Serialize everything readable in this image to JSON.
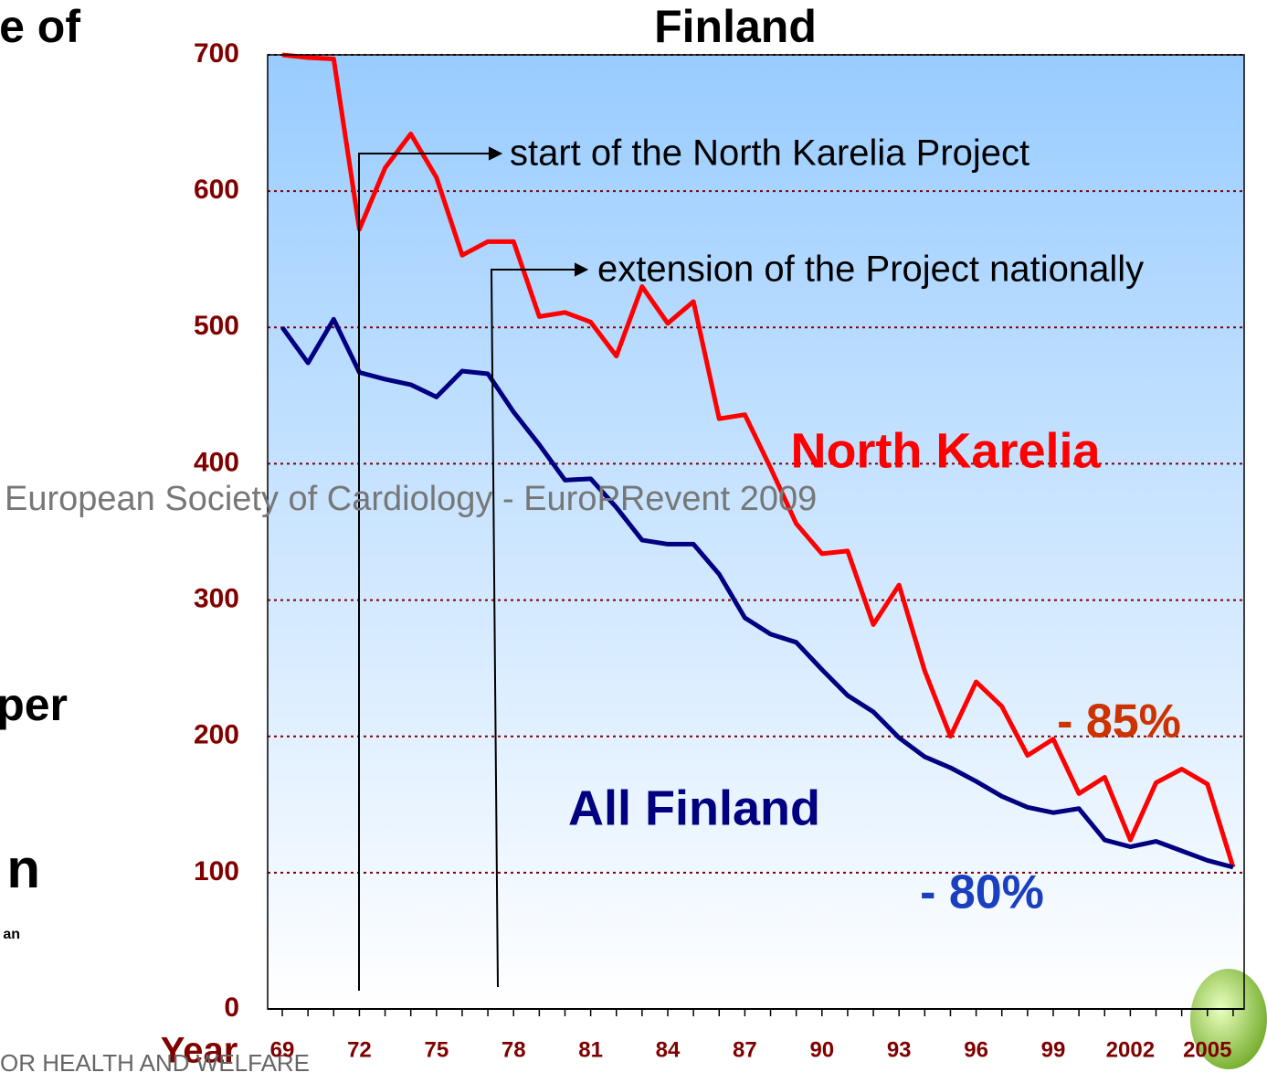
{
  "chart_data": {
    "type": "line",
    "title": "Finland",
    "x_label": "Year",
    "x": [
      1969,
      1970,
      1971,
      1972,
      1973,
      1974,
      1975,
      1976,
      1977,
      1978,
      1979,
      1980,
      1981,
      1982,
      1983,
      1984,
      1985,
      1986,
      1987,
      1988,
      1989,
      1990,
      1991,
      1992,
      1993,
      1994,
      1995,
      1996,
      1997,
      1998,
      1999,
      2000,
      2001,
      2002,
      2003,
      2004,
      2005,
      2006
    ],
    "series": [
      {
        "name": "North Karelia",
        "color": "#ff0000",
        "change_label": "- 85%",
        "change_color": "#cc3300",
        "values": [
          700,
          698,
          697,
          572,
          617,
          642,
          610,
          553,
          563,
          563,
          508,
          511,
          504,
          479,
          530,
          503,
          519,
          433,
          436,
          397,
          356,
          334,
          336,
          282,
          311,
          248,
          200,
          240,
          222,
          186,
          198,
          158,
          170,
          124,
          166,
          176,
          165,
          104
        ]
      },
      {
        "name": "All Finland",
        "color": "#000080",
        "change_label": "- 80%",
        "change_color": "#1a3fbf",
        "values": [
          500,
          474,
          506,
          467,
          462,
          458,
          449,
          468,
          466,
          438,
          414,
          388,
          389,
          368,
          344,
          341,
          341,
          319,
          287,
          275,
          269,
          249,
          230,
          218,
          199,
          185,
          177,
          167,
          156,
          148,
          144,
          147,
          124,
          119,
          123,
          116,
          109,
          104
        ]
      }
    ],
    "xlim": [
      1968.43,
      2006.43
    ],
    "ylim": [
      0,
      700
    ],
    "yticks": [
      0,
      100,
      200,
      300,
      400,
      500,
      600,
      700
    ],
    "xticks": [
      {
        "value": 1969,
        "label": "69"
      },
      {
        "value": 1972,
        "label": "72"
      },
      {
        "value": 1975,
        "label": "75"
      },
      {
        "value": 1978,
        "label": "78"
      },
      {
        "value": 1981,
        "label": "81"
      },
      {
        "value": 1984,
        "label": "84"
      },
      {
        "value": 1987,
        "label": "87"
      },
      {
        "value": 1990,
        "label": "90"
      },
      {
        "value": 1993,
        "label": "93"
      },
      {
        "value": 1996,
        "label": "96"
      },
      {
        "value": 1999,
        "label": "99"
      },
      {
        "value": 2002,
        "label": "2002"
      },
      {
        "value": 2005,
        "label": "2005"
      }
    ],
    "grid": true,
    "annotations": [
      "start of the North Karelia Project",
      "extension of the Project nationally"
    ]
  },
  "slide": {
    "fragments": [
      "e of",
      "per",
      "n",
      "an"
    ],
    "footer": "European Society of Cardiology - EuroPRevent 2009",
    "bottom_text": "OR HEALTH AND WELFARE"
  }
}
